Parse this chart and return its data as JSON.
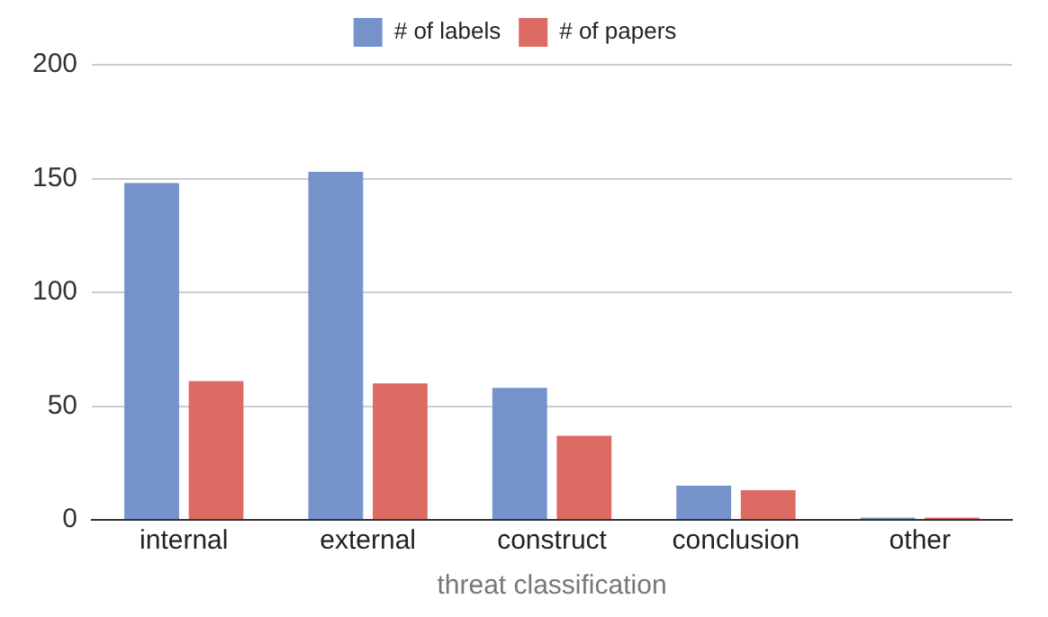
{
  "chart_data": {
    "type": "bar",
    "xlabel": "threat classification",
    "categories": [
      "internal",
      "external",
      "construct",
      "conclusion",
      "other"
    ],
    "series": [
      {
        "name": "# of labels",
        "color": "#7592cb",
        "values": [
          148,
          153,
          58,
          15,
          1
        ]
      },
      {
        "name": "# of papers",
        "color": "#dd6a63",
        "values": [
          61,
          60,
          37,
          13,
          1
        ]
      }
    ],
    "ylim": [
      0,
      200
    ],
    "yticks": [
      0,
      50,
      100,
      150,
      200
    ],
    "grid": "y",
    "legend": "top"
  }
}
